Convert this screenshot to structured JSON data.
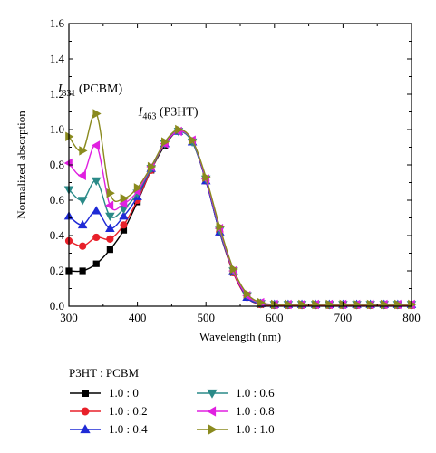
{
  "chart_data": {
    "type": "line",
    "xlabel": "Wavelength (nm)",
    "ylabel": "Normalized absorption",
    "xlim": [
      300,
      800
    ],
    "ylim": [
      0,
      1.6
    ],
    "xticks": [
      300,
      400,
      500,
      600,
      700,
      800
    ],
    "yticks": [
      0.0,
      0.2,
      0.4,
      0.6,
      0.8,
      1.0,
      1.2,
      1.4,
      1.6
    ],
    "legend_title": "P3HT : PCBM",
    "legend_position": "bottom",
    "annotations": [
      {
        "base": "I",
        "sub": "331",
        "rest": " (PCBM)",
        "x": 331,
        "y": 1.21
      },
      {
        "base": "I",
        "sub": "463",
        "rest": " (P3HT)",
        "x": 445,
        "y": 1.08
      }
    ],
    "x": [
      300,
      320,
      340,
      360,
      380,
      400,
      420,
      440,
      460,
      480,
      500,
      520,
      540,
      560,
      580,
      600,
      620,
      640,
      660,
      680,
      700,
      720,
      740,
      760,
      780,
      800
    ],
    "series": [
      {
        "name": "1.0 : 0",
        "color": "#000000",
        "marker": "square",
        "values": [
          0.2,
          0.2,
          0.24,
          0.32,
          0.43,
          0.59,
          0.77,
          0.91,
          0.99,
          0.93,
          0.71,
          0.42,
          0.19,
          0.05,
          0.01,
          0.005,
          0.005,
          0.005,
          0.005,
          0.005,
          0.005,
          0.005,
          0.005,
          0.005,
          0.005,
          0.005
        ]
      },
      {
        "name": "1.0 : 0.2",
        "color": "#e8202a",
        "marker": "circle",
        "values": [
          0.37,
          0.34,
          0.39,
          0.38,
          0.46,
          0.6,
          0.77,
          0.92,
          0.99,
          0.93,
          0.71,
          0.42,
          0.19,
          0.05,
          0.01,
          0.005,
          0.005,
          0.005,
          0.005,
          0.005,
          0.005,
          0.005,
          0.005,
          0.005,
          0.005,
          0.005
        ]
      },
      {
        "name": "1.0 : 0.4",
        "color": "#1f2ad6",
        "marker": "triangle-up",
        "values": [
          0.51,
          0.46,
          0.54,
          0.44,
          0.51,
          0.62,
          0.78,
          0.92,
          0.99,
          0.93,
          0.71,
          0.42,
          0.2,
          0.05,
          0.015,
          0.01,
          0.01,
          0.01,
          0.01,
          0.01,
          0.01,
          0.01,
          0.01,
          0.01,
          0.01,
          0.01
        ]
      },
      {
        "name": "1.0 : 0.6",
        "color": "#2a8a88",
        "marker": "triangle-down",
        "values": [
          0.66,
          0.6,
          0.71,
          0.51,
          0.55,
          0.64,
          0.78,
          0.92,
          0.99,
          0.93,
          0.72,
          0.43,
          0.2,
          0.06,
          0.015,
          0.01,
          0.01,
          0.01,
          0.01,
          0.01,
          0.01,
          0.01,
          0.01,
          0.01,
          0.01,
          0.01
        ]
      },
      {
        "name": "1.0 : 0.8",
        "color": "#e020e0",
        "marker": "triangle-left",
        "values": [
          0.81,
          0.74,
          0.91,
          0.57,
          0.58,
          0.65,
          0.79,
          0.92,
          0.99,
          0.94,
          0.72,
          0.44,
          0.2,
          0.06,
          0.02,
          0.01,
          0.01,
          0.01,
          0.01,
          0.01,
          0.01,
          0.01,
          0.01,
          0.01,
          0.01,
          0.01
        ]
      },
      {
        "name": "1.0 : 1.0",
        "color": "#8a8a1e",
        "marker": "triangle-right",
        "values": [
          0.96,
          0.88,
          1.09,
          0.64,
          0.61,
          0.67,
          0.79,
          0.93,
          1.0,
          0.94,
          0.73,
          0.45,
          0.21,
          0.07,
          0.02,
          0.01,
          0.01,
          0.01,
          0.01,
          0.01,
          0.01,
          0.01,
          0.01,
          0.01,
          0.01,
          0.01
        ]
      }
    ]
  }
}
